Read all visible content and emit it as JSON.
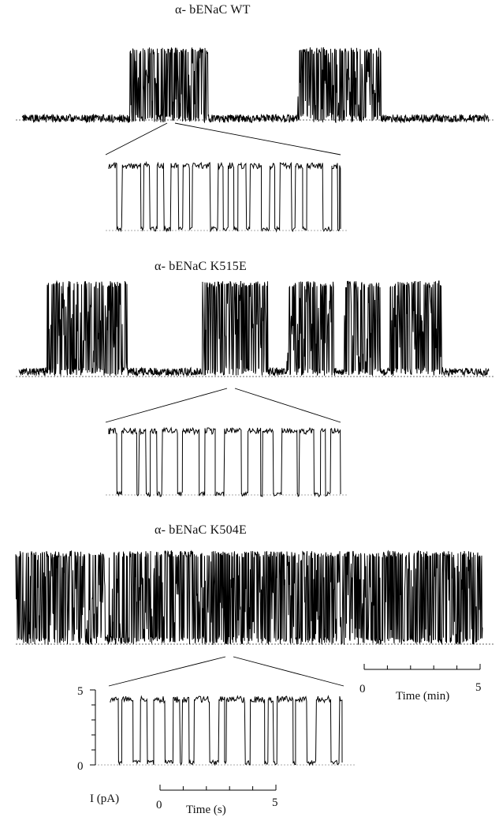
{
  "chart_data": [
    {
      "type": "line",
      "title": "α- bENaC WT",
      "description_note": "",
      "trace": "slow time base single-channel recording",
      "open_periods_fraction": [
        [
          0.23,
          0.4
        ],
        [
          0.59,
          0.77
        ]
      ]
    },
    {
      "type": "line",
      "title": "α- bENaC K515E",
      "trace": "slow time base single-channel recording",
      "open_periods_fraction": [
        [
          0.06,
          0.23
        ],
        [
          0.39,
          0.53
        ],
        [
          0.57,
          0.67
        ],
        [
          0.69,
          0.77
        ],
        [
          0.79,
          0.9
        ]
      ]
    },
    {
      "type": "line",
      "title": "α- bENaC K504E",
      "trace": "slow time base single-channel recording",
      "open_periods_fraction": [
        [
          0.0,
          1.0
        ]
      ]
    },
    {
      "type": "line",
      "title": "",
      "ylabel": "I (pA)",
      "xlabel": "Time (s)",
      "y_ticks": [
        "5",
        "0"
      ],
      "x_ticks": [
        "0",
        "5"
      ],
      "ylim": [
        0,
        5
      ],
      "xlim": [
        0,
        5
      ]
    }
  ],
  "scale_bars": {
    "slow": {
      "label": "Time (min)",
      "start": "0",
      "end": "5"
    },
    "fast": {
      "label": "Time (s)",
      "start": "0",
      "end": "5"
    },
    "current": {
      "label": "I (pA)",
      "top": "5",
      "bottom": "0"
    }
  }
}
